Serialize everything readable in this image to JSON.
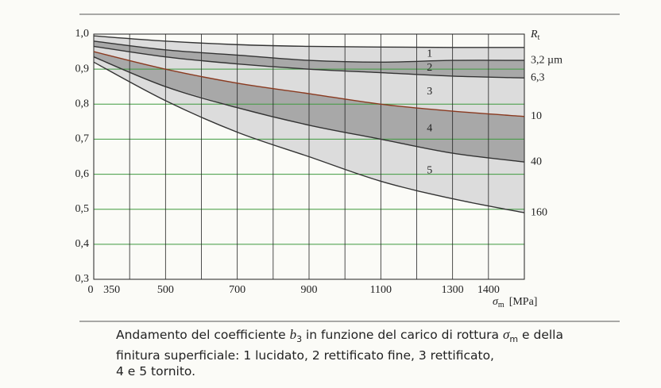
{
  "chart_data": {
    "type": "band-lines",
    "x": [
      300,
      500,
      700,
      900,
      1100,
      1300,
      1500
    ],
    "xlim": [
      300,
      1500
    ],
    "xticks": [
      {
        "value": 300,
        "label": "0"
      },
      350,
      500,
      700,
      900,
      1100,
      1300,
      1400
    ],
    "xgrid": [
      400,
      500,
      600,
      700,
      800,
      900,
      1000,
      1100,
      1200,
      1300,
      1400
    ],
    "ylim": [
      0.3,
      1.0
    ],
    "yticks": [
      {
        "value": 0.3,
        "label": "0,3"
      },
      {
        "value": 0.4,
        "label": "0,4"
      },
      {
        "value": 0.5,
        "label": "0,5"
      },
      {
        "value": 0.6,
        "label": "0,6"
      },
      {
        "value": 0.7,
        "label": "0,7"
      },
      {
        "value": 0.8,
        "label": "0,8"
      },
      {
        "value": 0.9,
        "label": "0,9"
      },
      {
        "value": 1.0,
        "label": "1,0"
      }
    ],
    "grid": true,
    "grid_color": "#3f9a3f",
    "x_label": {
      "symbol": "σ",
      "sub": "m",
      "unit": "[MPa]"
    },
    "right_title": {
      "main": "R",
      "sub": "t"
    },
    "series": [
      {
        "color": "#333333",
        "values": [
          0.995,
          0.98,
          0.97,
          0.965,
          0.963,
          0.962,
          0.962
        ]
      },
      {
        "name": "3,2 µm",
        "color": "#333333",
        "values": [
          0.98,
          0.955,
          0.94,
          0.925,
          0.92,
          0.925,
          0.925
        ]
      },
      {
        "name": "6,3",
        "color": "#333333",
        "values": [
          0.965,
          0.935,
          0.915,
          0.9,
          0.89,
          0.88,
          0.875
        ]
      },
      {
        "name": "10",
        "color": "#8a3a20",
        "values": [
          0.95,
          0.9,
          0.86,
          0.83,
          0.8,
          0.78,
          0.765
        ]
      },
      {
        "name": "40",
        "color": "#333333",
        "values": [
          0.935,
          0.85,
          0.79,
          0.74,
          0.7,
          0.66,
          0.635
        ]
      },
      {
        "name": "160",
        "color": "#333333",
        "values": [
          0.92,
          0.81,
          0.72,
          0.65,
          0.58,
          0.53,
          0.49
        ]
      }
    ],
    "bands": [
      {
        "label": "1",
        "color": "#dcdcdc"
      },
      {
        "label": "2",
        "color": "#a8a8a8"
      },
      {
        "label": "3",
        "color": "#dcdcdc"
      },
      {
        "label": "4",
        "color": "#a8a8a8"
      },
      {
        "label": "5",
        "color": "#dcdcdc"
      }
    ]
  },
  "caption": {
    "line1": {
      "a": "Andamento del coefficiente ",
      "b": "b",
      "b_sub": "3",
      "c": " in funzione del carico di rottura ",
      "d": "σ",
      "d_sub": "m",
      "e": " e della"
    },
    "line2": "finitura superficiale: 1 lucidato, 2 rettificato fine, 3 rettificato,",
    "line3": "4 e 5 tornito."
  }
}
